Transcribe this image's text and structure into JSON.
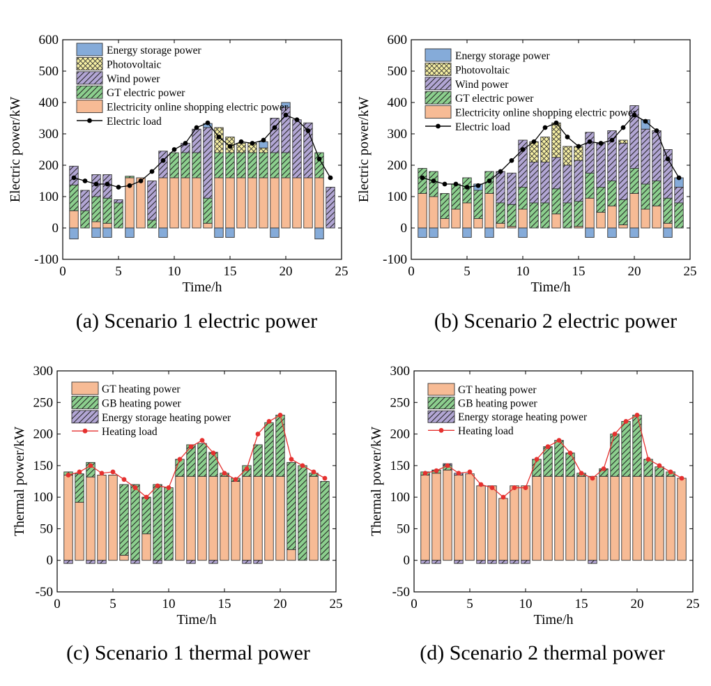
{
  "colors": {
    "storage": "#85abd9",
    "photovoltaic": "#f7f0a4",
    "wind": "#b2a6d4",
    "gt": "#8ccf8e",
    "grid": "#f7bb95",
    "heat_gt": "#f7bb95",
    "heat_gb": "#8ccf8e",
    "heat_storage": "#b2a6d4",
    "electric_load": "#000000",
    "heating_load": "#e5312f"
  },
  "chart_data": [
    {
      "type": "bar",
      "id": "a",
      "caption": "(a) Scenario 1 electric power",
      "xlabel": "Time/h",
      "ylabel": "Electric power/kW",
      "xlim": [
        0,
        25
      ],
      "ylim": [
        -100,
        600
      ],
      "xticks": [
        "0",
        "5",
        "10",
        "15",
        "20",
        "25"
      ],
      "yticks": [
        "600",
        "500",
        "400",
        "300",
        "200",
        "100",
        "0",
        "-100"
      ],
      "hours": [
        1,
        2,
        3,
        4,
        5,
        6,
        7,
        8,
        9,
        10,
        11,
        12,
        13,
        14,
        15,
        16,
        17,
        18,
        19,
        20,
        21,
        22,
        23,
        24
      ],
      "series": [
        {
          "name": "Electricity online shopping electric power",
          "key": "grid",
          "values": [
            55,
            0,
            20,
            15,
            0,
            160,
            160,
            0,
            160,
            160,
            160,
            160,
            15,
            160,
            160,
            160,
            160,
            160,
            160,
            160,
            160,
            160,
            160,
            0
          ]
        },
        {
          "name": "GT electric power",
          "key": "gt",
          "values": [
            82,
            55,
            80,
            80,
            80,
            5,
            0,
            25,
            0,
            80,
            80,
            80,
            80,
            80,
            80,
            80,
            80,
            80,
            80,
            80,
            0,
            0,
            80,
            0
          ]
        },
        {
          "name": "Wind power",
          "key": "wind",
          "values": [
            60,
            65,
            70,
            75,
            10,
            0,
            0,
            125,
            85,
            0,
            30,
            75,
            225,
            0,
            0,
            0,
            0,
            0,
            110,
            145,
            185,
            175,
            0,
            130
          ]
        },
        {
          "name": "Photovoltaic",
          "key": "photovoltaic",
          "values": [
            0,
            0,
            0,
            0,
            0,
            0,
            0,
            0,
            0,
            0,
            0,
            0,
            0,
            80,
            50,
            30,
            30,
            15,
            0,
            0,
            0,
            0,
            0,
            0
          ]
        },
        {
          "name": "Energy storage power",
          "key": "storage",
          "values": [
            0,
            0,
            0,
            0,
            0,
            0,
            0,
            0,
            0,
            0,
            0,
            0,
            13,
            0,
            0,
            0,
            0,
            20,
            0,
            15,
            0,
            0,
            0,
            0
          ]
        },
        {
          "name": "Energy storage power (charging)",
          "key": "storage",
          "values": [
            -35,
            0,
            -30,
            -30,
            0,
            -30,
            0,
            0,
            -30,
            0,
            0,
            0,
            0,
            -30,
            -30,
            0,
            0,
            0,
            -30,
            0,
            0,
            0,
            -35,
            0
          ]
        }
      ],
      "load": {
        "name": "Electric load",
        "values": [
          160,
          150,
          140,
          140,
          130,
          135,
          150,
          180,
          215,
          250,
          270,
          320,
          335,
          290,
          260,
          275,
          270,
          280,
          320,
          360,
          345,
          310,
          220,
          160
        ]
      },
      "legend": [
        "Energy storage power",
        "Photovoltaic",
        "Wind power",
        "GT electric power",
        "Electricity online shopping electric power",
        "Electric load"
      ]
    },
    {
      "type": "bar",
      "id": "b",
      "caption": "(b) Scenario 2 electric power",
      "xlabel": "Time/h",
      "ylabel": "Electric power/kW",
      "xlim": [
        0,
        25
      ],
      "ylim": [
        -100,
        600
      ],
      "xticks": [
        "0",
        "5",
        "10",
        "15",
        "20",
        "25"
      ],
      "yticks": [
        "600",
        "500",
        "400",
        "300",
        "200",
        "100",
        "0",
        "-100"
      ],
      "hours": [
        1,
        2,
        3,
        4,
        5,
        6,
        7,
        8,
        9,
        10,
        11,
        12,
        13,
        14,
        15,
        16,
        17,
        18,
        19,
        20,
        21,
        22,
        23,
        24
      ],
      "series": [
        {
          "name": "Electricity online shopping electric power",
          "key": "grid",
          "values": [
            110,
            100,
            30,
            60,
            80,
            30,
            110,
            15,
            5,
            60,
            0,
            0,
            45,
            0,
            5,
            95,
            50,
            70,
            10,
            110,
            60,
            70,
            15,
            0
          ]
        },
        {
          "name": "GT electric power",
          "key": "gt",
          "values": [
            80,
            80,
            80,
            80,
            80,
            90,
            70,
            65,
            70,
            70,
            80,
            80,
            80,
            80,
            80,
            80,
            80,
            80,
            80,
            80,
            80,
            80,
            80,
            80
          ]
        },
        {
          "name": "Wind power",
          "key": "wind",
          "values": [
            0,
            0,
            0,
            0,
            0,
            0,
            0,
            100,
            100,
            150,
            130,
            130,
            100,
            120,
            130,
            130,
            140,
            160,
            180,
            200,
            175,
            160,
            155,
            50
          ]
        },
        {
          "name": "Photovoltaic",
          "key": "photovoltaic",
          "values": [
            0,
            0,
            0,
            0,
            0,
            0,
            0,
            0,
            0,
            0,
            65,
            80,
            110,
            60,
            45,
            0,
            0,
            0,
            10,
            0,
            0,
            0,
            0,
            0
          ]
        },
        {
          "name": "Energy storage power",
          "key": "storage",
          "values": [
            0,
            0,
            0,
            0,
            0,
            20,
            0,
            0,
            0,
            0,
            0,
            0,
            0,
            0,
            0,
            0,
            0,
            0,
            0,
            0,
            30,
            0,
            0,
            30
          ]
        },
        {
          "name": "Energy storage power (charging)",
          "key": "storage",
          "values": [
            -30,
            -30,
            0,
            0,
            -30,
            0,
            -30,
            0,
            0,
            -30,
            0,
            0,
            0,
            0,
            0,
            -30,
            0,
            -30,
            0,
            -30,
            0,
            0,
            -30,
            0
          ]
        }
      ],
      "load": {
        "name": "Electric load",
        "values": [
          160,
          150,
          140,
          140,
          130,
          135,
          150,
          180,
          215,
          250,
          275,
          320,
          335,
          290,
          260,
          275,
          270,
          280,
          320,
          360,
          340,
          310,
          220,
          160
        ]
      },
      "legend": [
        "Energy storage power",
        "Photovoltaic",
        "Wind power",
        "GT electric power",
        "Electricity online shopping electric power",
        "Electric load"
      ]
    },
    {
      "type": "bar",
      "id": "c",
      "caption": "(c) Scenario 1 thermal power",
      "xlabel": "Time/h",
      "ylabel": "Thermal power/kW",
      "xlim": [
        0,
        25
      ],
      "ylim": [
        -50,
        300
      ],
      "xticks": [
        "0",
        "5",
        "10",
        "15",
        "20",
        "25"
      ],
      "yticks": [
        "300",
        "250",
        "200",
        "150",
        "100",
        "50",
        "0",
        "-50"
      ],
      "hours": [
        1,
        2,
        3,
        4,
        5,
        6,
        7,
        8,
        9,
        10,
        11,
        12,
        13,
        14,
        15,
        16,
        17,
        18,
        19,
        20,
        21,
        22,
        23,
        24
      ],
      "series": [
        {
          "name": "GT heating power",
          "key": "heat_gt",
          "values": [
            135,
            92,
            132,
            135,
            135,
            8,
            0,
            42,
            0,
            0,
            133,
            133,
            133,
            133,
            133,
            125,
            133,
            133,
            133,
            133,
            17,
            0,
            133,
            0
          ]
        },
        {
          "name": "GB heating power",
          "key": "heat_gb",
          "values": [
            5,
            45,
            23,
            0,
            0,
            112,
            120,
            58,
            120,
            115,
            27,
            50,
            52,
            38,
            5,
            5,
            17,
            50,
            85,
            97,
            138,
            150,
            5,
            125
          ]
        },
        {
          "name": "Energy storage heating power",
          "key": "heat_storage",
          "values": [
            0,
            0,
            0,
            0,
            0,
            0,
            0,
            0,
            0,
            0,
            0,
            0,
            0,
            0,
            0,
            0,
            0,
            0,
            0,
            0,
            0,
            0,
            0,
            0
          ]
        },
        {
          "name": "Energy storage heating power (charging)",
          "key": "heat_storage",
          "values": [
            -5,
            0,
            -5,
            -5,
            0,
            0,
            -5,
            0,
            -5,
            0,
            0,
            -5,
            0,
            -5,
            0,
            0,
            -5,
            -5,
            0,
            0,
            0,
            0,
            0,
            0
          ]
        }
      ],
      "load": {
        "name": "Heating load",
        "values": [
          135,
          140,
          150,
          138,
          140,
          128,
          115,
          100,
          118,
          115,
          160,
          180,
          190,
          170,
          138,
          128,
          145,
          200,
          220,
          230,
          160,
          150,
          140,
          130
        ]
      },
      "legend": [
        "GT heating power",
        "GB heating power",
        "Energy storage heating power",
        "Heating load"
      ]
    },
    {
      "type": "bar",
      "id": "d",
      "caption": "(d) Scenario 2 thermal power",
      "xlabel": "Time/h",
      "ylabel": "Thermal power/kW",
      "xlim": [
        0,
        25
      ],
      "ylim": [
        -50,
        300
      ],
      "xticks": [
        "0",
        "5",
        "10",
        "15",
        "20",
        "25"
      ],
      "yticks": [
        "300",
        "250",
        "200",
        "150",
        "100",
        "50",
        "0",
        "-50"
      ],
      "hours": [
        1,
        2,
        3,
        4,
        5,
        6,
        7,
        8,
        9,
        10,
        11,
        12,
        13,
        14,
        15,
        16,
        17,
        18,
        19,
        20,
        21,
        22,
        23,
        24
      ],
      "series": [
        {
          "name": "GT heating power",
          "key": "heat_gt",
          "values": [
            135,
            138,
            143,
            135,
            137,
            118,
            118,
            98,
            118,
            118,
            133,
            133,
            133,
            133,
            133,
            133,
            133,
            133,
            133,
            133,
            133,
            133,
            133,
            130
          ]
        },
        {
          "name": "GB heating power",
          "key": "heat_gb",
          "values": [
            5,
            5,
            7,
            0,
            0,
            0,
            0,
            0,
            0,
            0,
            27,
            47,
            57,
            37,
            5,
            0,
            12,
            67,
            87,
            97,
            27,
            15,
            7,
            0
          ]
        },
        {
          "name": "Energy storage heating power",
          "key": "heat_storage",
          "values": [
            0,
            0,
            3,
            3,
            0,
            0,
            0,
            0,
            0,
            0,
            0,
            0,
            0,
            0,
            0,
            0,
            0,
            0,
            0,
            0,
            0,
            0,
            0,
            0
          ]
        },
        {
          "name": "Energy storage heating power (charging)",
          "key": "heat_storage",
          "values": [
            -5,
            -5,
            0,
            -5,
            0,
            -5,
            -5,
            -5,
            -5,
            -5,
            0,
            0,
            0,
            0,
            0,
            -5,
            0,
            0,
            0,
            0,
            0,
            0,
            0,
            0
          ]
        }
      ],
      "load": {
        "name": "Heating load",
        "values": [
          138,
          142,
          150,
          138,
          140,
          120,
          115,
          100,
          115,
          115,
          160,
          180,
          190,
          170,
          138,
          130,
          145,
          200,
          220,
          230,
          160,
          150,
          140,
          130
        ]
      },
      "legend": [
        "GT heating power",
        "GB heating power",
        "Energy storage heating power",
        "Heating load"
      ]
    }
  ]
}
